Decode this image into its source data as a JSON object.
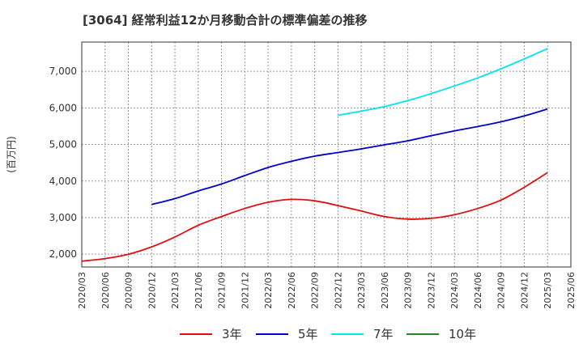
{
  "title": "[3064]  経常利益12か月移動合計の標準偏差の推移",
  "chart_data": {
    "type": "line",
    "title": "[3064]  経常利益12か月移動合計の標準偏差の推移",
    "ylabel": "(百万円)",
    "xlabel": "",
    "ylim": [
      1650,
      7800
    ],
    "yticks": [
      2000,
      3000,
      4000,
      5000,
      6000,
      7000
    ],
    "ytick_labels": [
      "2,000",
      "3,000",
      "4,000",
      "5,000",
      "6,000",
      "7,000"
    ],
    "x_categories": [
      "2020/03",
      "2020/06",
      "2020/09",
      "2020/12",
      "2021/03",
      "2021/06",
      "2021/09",
      "2021/12",
      "2022/03",
      "2022/06",
      "2022/09",
      "2022/12",
      "2023/03",
      "2023/06",
      "2023/09",
      "2023/12",
      "2024/03",
      "2024/06",
      "2024/09",
      "2024/12",
      "2025/03",
      "2025/06"
    ],
    "grid": true,
    "legend_position": "bottom",
    "series": [
      {
        "name": "3年",
        "color": "#dd1111",
        "x": [
          "2020/03",
          "2020/06",
          "2020/09",
          "2020/12",
          "2021/03",
          "2021/06",
          "2021/09",
          "2021/12",
          "2022/03",
          "2022/06",
          "2022/09",
          "2022/12",
          "2023/03",
          "2023/06",
          "2023/09",
          "2023/12",
          "2024/03",
          "2024/06",
          "2024/09",
          "2024/12",
          "2025/03"
        ],
        "values": [
          1810,
          1880,
          2000,
          2200,
          2470,
          2790,
          3030,
          3250,
          3420,
          3500,
          3460,
          3330,
          3180,
          3030,
          2960,
          2980,
          3080,
          3250,
          3480,
          3830,
          4230
        ]
      },
      {
        "name": "5年",
        "color": "#0000cc",
        "x": [
          "2020/12",
          "2021/03",
          "2021/06",
          "2021/09",
          "2021/12",
          "2022/03",
          "2022/06",
          "2022/09",
          "2022/12",
          "2023/03",
          "2023/06",
          "2023/09",
          "2023/12",
          "2024/03",
          "2024/06",
          "2024/09",
          "2024/12",
          "2025/03"
        ],
        "values": [
          3360,
          3520,
          3730,
          3920,
          4150,
          4370,
          4540,
          4680,
          4780,
          4880,
          4990,
          5100,
          5240,
          5370,
          5490,
          5620,
          5780,
          5970
        ]
      },
      {
        "name": "7年",
        "color": "#00e5ee",
        "x": [
          "2022/12",
          "2023/03",
          "2023/06",
          "2023/09",
          "2023/12",
          "2024/03",
          "2024/06",
          "2024/09",
          "2024/12",
          "2025/03"
        ],
        "values": [
          5800,
          5910,
          6040,
          6200,
          6390,
          6600,
          6820,
          7070,
          7340,
          7620
        ]
      },
      {
        "name": "10年",
        "color": "#228822",
        "x": [],
        "values": []
      }
    ]
  }
}
